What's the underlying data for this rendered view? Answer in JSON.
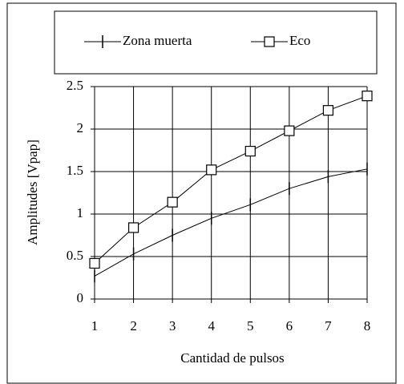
{
  "chart_data": {
    "type": "line",
    "x_label": "Cantidad de pulsos",
    "y_label": "Amplitudes [Vpap]",
    "x": [
      1,
      2,
      3,
      4,
      5,
      6,
      7,
      8
    ],
    "series": [
      {
        "name": "Zona muerta",
        "color": "#000000",
        "marker": "tick",
        "values": [
          0.27,
          0.53,
          0.75,
          0.95,
          1.11,
          1.3,
          1.44,
          1.53
        ]
      },
      {
        "name": "Eco",
        "color": "#000000",
        "marker": "square",
        "values": [
          0.42,
          0.84,
          1.14,
          1.52,
          1.74,
          1.98,
          2.22,
          2.39
        ]
      }
    ],
    "xlim": [
      1,
      8
    ],
    "xticks": [
      1,
      2,
      3,
      4,
      5,
      6,
      7,
      8
    ],
    "ylim": [
      0,
      2.5
    ],
    "yticks": [
      0,
      0.5,
      1,
      1.5,
      2,
      2.5
    ],
    "grid": true,
    "legend": "top"
  }
}
